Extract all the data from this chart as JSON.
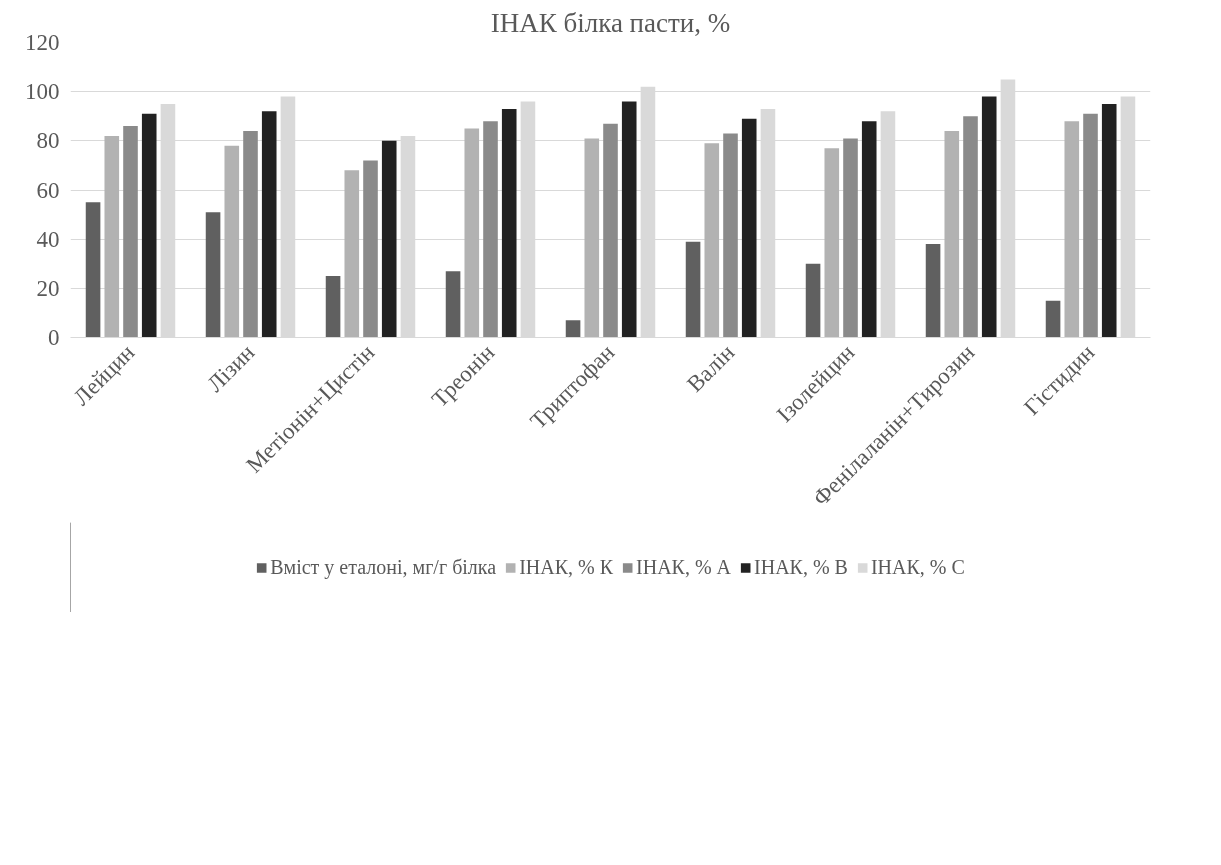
{
  "chart_data": {
    "type": "bar",
    "title": "ІНАК білка пасти, %",
    "categories": [
      "Лейцин",
      "Лізин",
      "Метіонін+Цистін",
      "Треонін",
      "Триптофан",
      "Валін",
      "Ізолейцин",
      "Фенілаланін+Тирозин",
      "Гістидин"
    ],
    "series": [
      {
        "name": "Вміст у еталоні, мг/г білка",
        "color": "#606060",
        "values": [
          55,
          51,
          25,
          27,
          7,
          39,
          30,
          38,
          15
        ]
      },
      {
        "name": "ІНАК, % К",
        "color": "#b2b2b2",
        "values": [
          82,
          78,
          68,
          85,
          81,
          79,
          77,
          84,
          88
        ]
      },
      {
        "name": "ІНАК, % А",
        "color": "#8a8a8a",
        "values": [
          86,
          84,
          72,
          88,
          87,
          83,
          81,
          90,
          91
        ]
      },
      {
        "name": "ІНАК, % В",
        "color": "#222222",
        "values": [
          91,
          92,
          80,
          93,
          96,
          89,
          88,
          98,
          95
        ]
      },
      {
        "name": "ІНАК, % С",
        "color": "#d9d9d9",
        "values": [
          95,
          98,
          82,
          96,
          102,
          93,
          92,
          105,
          98
        ]
      }
    ],
    "ylim": [
      0,
      120
    ],
    "yticks": [
      0,
      20,
      40,
      60,
      80,
      100,
      120
    ],
    "grid": "y",
    "legend": "bottom"
  }
}
